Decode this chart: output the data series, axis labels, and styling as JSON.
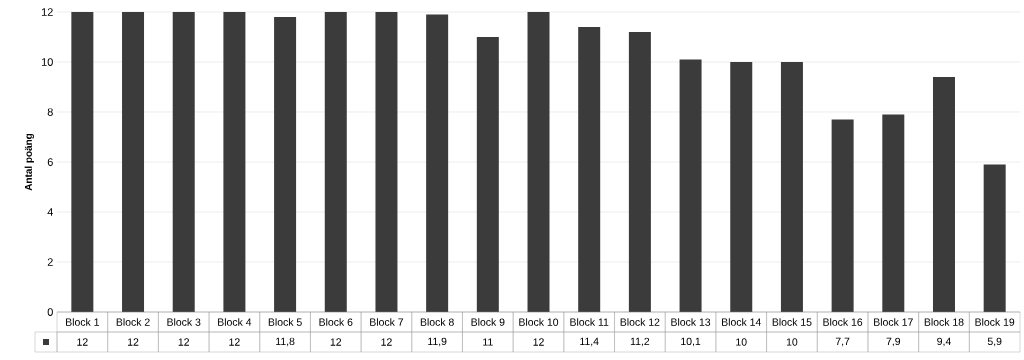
{
  "chart_data": {
    "type": "bar",
    "ylabel": "Antal poäng",
    "categories": [
      "Block 1",
      "Block 2",
      "Block 3",
      "Block 4",
      "Block 5",
      "Block 6",
      "Block 7",
      "Block 8",
      "Block 9",
      "Block 10",
      "Block 11",
      "Block 12",
      "Block 13",
      "Block 14",
      "Block 15",
      "Block 16",
      "Block 17",
      "Block 18",
      "Block 19"
    ],
    "values": [
      12,
      12,
      12,
      12,
      11.8,
      12,
      12,
      11.9,
      11,
      12,
      11.4,
      11.2,
      10.1,
      10,
      10,
      7.7,
      7.9,
      9.4,
      5.9
    ],
    "value_labels": [
      "12",
      "12",
      "12",
      "12",
      "11,8",
      "12",
      "12",
      "11,9",
      "11",
      "12",
      "11,4",
      "11,2",
      "10,1",
      "10",
      "10",
      "7,7",
      "7,9",
      "9,4",
      "5,9"
    ],
    "color": "#3b3b3b",
    "ylim": [
      0,
      12
    ],
    "yticks": [
      0,
      2,
      4,
      6,
      8,
      10,
      12
    ],
    "grid": "y"
  }
}
